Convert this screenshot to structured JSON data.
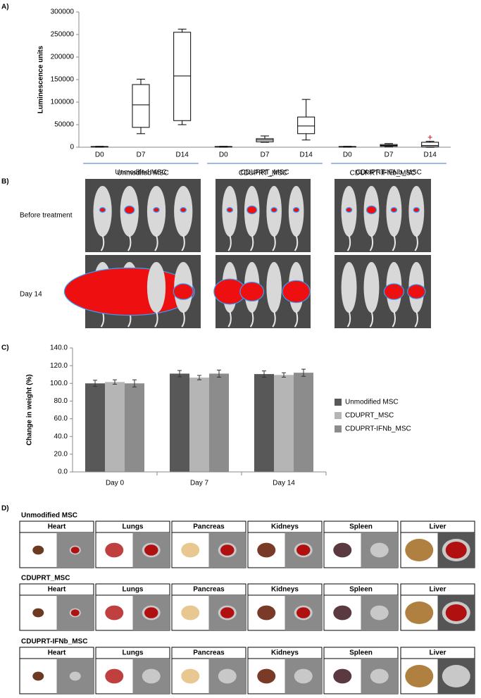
{
  "panel_labels": [
    "A)",
    "B)",
    "C)",
    "D)"
  ],
  "chart_data": [
    {
      "type": "box",
      "ylabel": "Luminescence units",
      "ylim": [
        0,
        300000
      ],
      "yticks": [
        0,
        50000,
        100000,
        150000,
        200000,
        250000,
        300000
      ],
      "groups": [
        {
          "label": "Unmodifed MSC",
          "categories": [
            "D0",
            "D7",
            "D14"
          ],
          "min": [
            0,
            30000,
            50000
          ],
          "q1": [
            500,
            44000,
            59000
          ],
          "median": [
            1000,
            94000,
            158000
          ],
          "q3": [
            1500,
            139000,
            255000
          ],
          "max": [
            2000,
            151000,
            262000
          ]
        },
        {
          "label": "CDUPRT_MSC",
          "categories": [
            "D0",
            "D7",
            "D14"
          ],
          "min": [
            0,
            11000,
            16000
          ],
          "q1": [
            500,
            12000,
            30000
          ],
          "median": [
            1000,
            16000,
            47000
          ],
          "q3": [
            1500,
            19000,
            67000
          ],
          "max": [
            2000,
            25000,
            106000
          ]
        },
        {
          "label": "CDUPRT-IFNb_MSC",
          "categories": [
            "D0",
            "D7",
            "D14"
          ],
          "min": [
            0,
            1000,
            0
          ],
          "q1": [
            500,
            2000,
            1000
          ],
          "median": [
            1000,
            4000,
            4000
          ],
          "q3": [
            1500,
            6000,
            11000
          ],
          "max": [
            2000,
            8000,
            13000
          ],
          "outliers": [
            [],
            [],
            [
              22000
            ]
          ],
          "outlier_color": "#e03030"
        }
      ]
    },
    {
      "type": "bar",
      "ylabel": "Change in weight (%)",
      "ylim": [
        0,
        140
      ],
      "yticks": [
        {
          "value": 0,
          "label": "0.0"
        },
        {
          "value": 20,
          "label": "20.0"
        },
        {
          "value": 40,
          "label": "40.0"
        },
        {
          "value": 60,
          "label": "60.0"
        },
        {
          "value": 80,
          "label": "80.0"
        },
        {
          "value": 100,
          "label": "100.0"
        },
        {
          "value": 120,
          "label": "120.0"
        },
        {
          "value": 140,
          "label": "140.0"
        }
      ],
      "categories": [
        "Day 0",
        "Day 7",
        "Day 14"
      ],
      "series": [
        {
          "name": "Unmodified MSC",
          "color": "#585858",
          "values": [
            100,
            111,
            110.5
          ],
          "errors": [
            3.5,
            3.5,
            3.5
          ]
        },
        {
          "name": "CDUPRT_MSC",
          "color": "#b5b5b5",
          "values": [
            101.5,
            106.5,
            109.5
          ],
          "errors": [
            2.5,
            2.5,
            2.5
          ]
        },
        {
          "name": "CDUPRT-IFNb_MSC",
          "color": "#8c8c8c",
          "values": [
            100,
            111,
            112
          ],
          "errors": [
            4,
            4,
            4
          ]
        }
      ],
      "legend": "right"
    }
  ],
  "imaging": {
    "columns": [
      "Unmodifed MSC",
      "CDUPRT_MSC",
      "CDUPRT-IFNb_MSC"
    ],
    "rows": [
      "Before treatment",
      "Day 14"
    ]
  },
  "organs": {
    "groups": [
      "Unmodified MSC",
      "CDUPRT_MSC",
      "CDUPRT-IFNb_MSC"
    ],
    "tissues": [
      "Heart",
      "Lungs",
      "Pancreas",
      "Kidneys",
      "Spleen",
      "Liver"
    ]
  }
}
